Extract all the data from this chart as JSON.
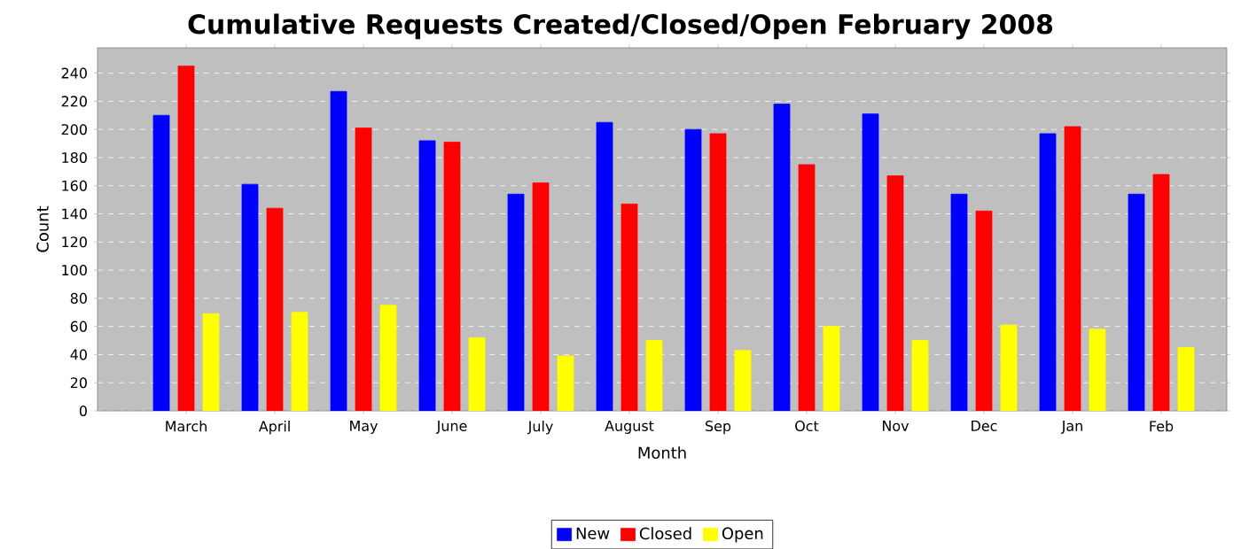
{
  "chart_data": {
    "type": "bar",
    "title": "Cumulative Requests Created/Closed/Open February 2008",
    "xlabel": "Month",
    "ylabel": "Count",
    "categories": [
      "March",
      "April",
      "May",
      "June",
      "July",
      "August",
      "Sep",
      "Oct",
      "Nov",
      "Dec",
      "Jan",
      "Feb"
    ],
    "series": [
      {
        "name": "New",
        "color": "#0000ff",
        "values": [
          210,
          161,
          227,
          192,
          154,
          205,
          200,
          218,
          211,
          154,
          197,
          154
        ]
      },
      {
        "name": "Closed",
        "color": "#ff0000",
        "values": [
          245,
          144,
          201,
          191,
          162,
          147,
          197,
          175,
          167,
          142,
          202,
          168
        ]
      },
      {
        "name": "Open",
        "color": "#ffff00",
        "values": [
          69,
          70,
          75,
          52,
          39,
          50,
          43,
          60,
          50,
          61,
          58,
          45
        ]
      }
    ],
    "ylim": [
      0,
      258
    ],
    "yticks": [
      0,
      20,
      40,
      60,
      80,
      100,
      120,
      140,
      160,
      180,
      200,
      220,
      240
    ],
    "grid": "y",
    "legend": "bottom"
  }
}
